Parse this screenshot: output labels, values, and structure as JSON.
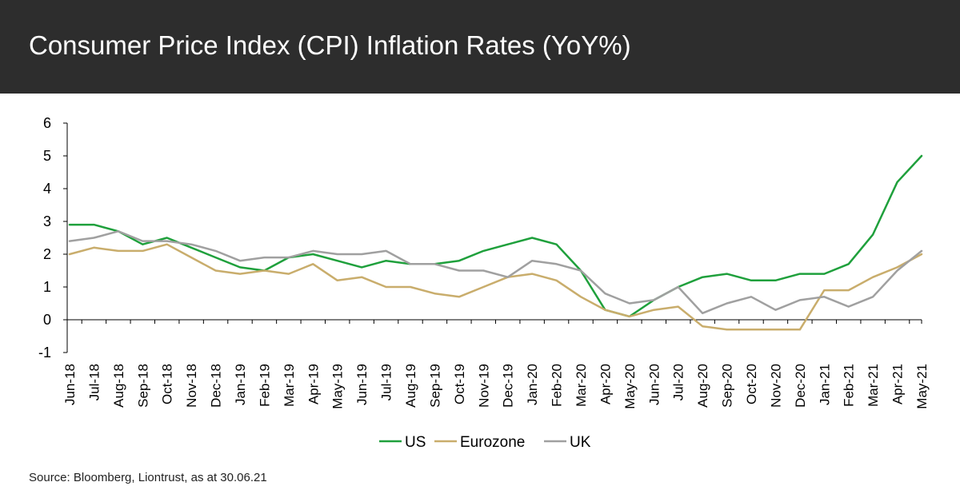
{
  "header": {
    "title": "Consumer Price Index (CPI) Inflation Rates (YoY%)"
  },
  "footer": {
    "source": "Source: Bloomberg, Liontrust, as at 30.06.21"
  },
  "colors": {
    "header_bg": "#2d2d2d",
    "us": "#1fa03c",
    "eurozone": "#c9ad6c",
    "uk": "#a0a0a0",
    "axis": "#000000"
  },
  "chart_data": {
    "type": "line",
    "title": "Consumer Price Index (CPI) Inflation Rates (YoY%)",
    "xlabel": "",
    "ylabel": "",
    "ylim": [
      -1,
      6
    ],
    "yticks": [
      -1,
      0,
      1,
      2,
      3,
      4,
      5,
      6
    ],
    "grid": false,
    "legend_position": "bottom",
    "categories": [
      "Jun-18",
      "Jul-18",
      "Aug-18",
      "Sep-18",
      "Oct-18",
      "Nov-18",
      "Dec-18",
      "Jan-19",
      "Feb-19",
      "Mar-19",
      "Apr-19",
      "May-19",
      "Jun-19",
      "Jul-19",
      "Aug-19",
      "Sep-19",
      "Oct-19",
      "Nov-19",
      "Dec-19",
      "Jan-20",
      "Feb-20",
      "Mar-20",
      "Apr-20",
      "May-20",
      "Jun-20",
      "Jul-20",
      "Aug-20",
      "Sep-20",
      "Oct-20",
      "Nov-20",
      "Dec-20",
      "Jan-21",
      "Feb-21",
      "Mar-21",
      "Apr-21",
      "May-21"
    ],
    "series": [
      {
        "name": "US",
        "color": "#1fa03c",
        "values": [
          2.9,
          2.9,
          2.7,
          2.3,
          2.5,
          2.2,
          1.9,
          1.6,
          1.5,
          1.9,
          2.0,
          1.8,
          1.6,
          1.8,
          1.7,
          1.7,
          1.8,
          2.1,
          2.3,
          2.5,
          2.3,
          1.5,
          0.3,
          0.1,
          0.6,
          1.0,
          1.3,
          1.4,
          1.2,
          1.2,
          1.4,
          1.4,
          1.7,
          2.6,
          4.2,
          5.0
        ]
      },
      {
        "name": "Eurozone",
        "color": "#c9ad6c",
        "values": [
          2.0,
          2.2,
          2.1,
          2.1,
          2.3,
          1.9,
          1.5,
          1.4,
          1.5,
          1.4,
          1.7,
          1.2,
          1.3,
          1.0,
          1.0,
          0.8,
          0.7,
          1.0,
          1.3,
          1.4,
          1.2,
          0.7,
          0.3,
          0.1,
          0.3,
          0.4,
          -0.2,
          -0.3,
          -0.3,
          -0.3,
          -0.3,
          0.9,
          0.9,
          1.3,
          1.6,
          2.0
        ]
      },
      {
        "name": "UK",
        "color": "#a0a0a0",
        "values": [
          2.4,
          2.5,
          2.7,
          2.4,
          2.4,
          2.3,
          2.1,
          1.8,
          1.9,
          1.9,
          2.1,
          2.0,
          2.0,
          2.1,
          1.7,
          1.7,
          1.5,
          1.5,
          1.3,
          1.8,
          1.7,
          1.5,
          0.8,
          0.5,
          0.6,
          1.0,
          0.2,
          0.5,
          0.7,
          0.3,
          0.6,
          0.7,
          0.4,
          0.7,
          1.5,
          2.1
        ]
      }
    ]
  }
}
